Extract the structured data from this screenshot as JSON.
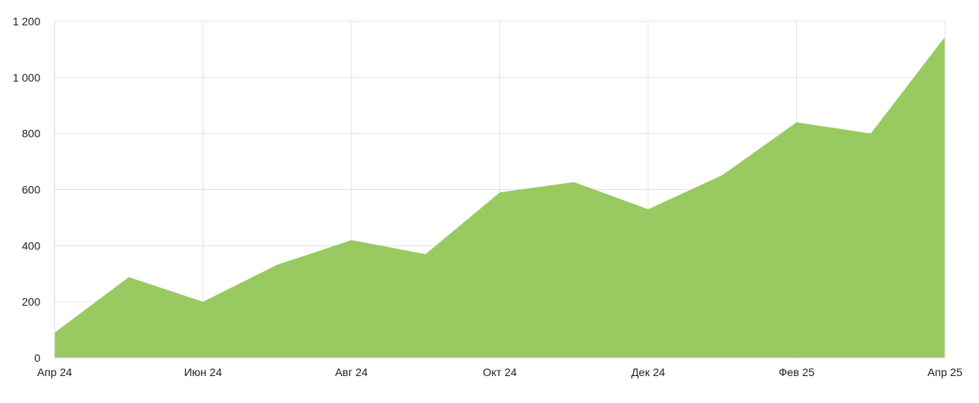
{
  "chart_data": {
    "type": "area",
    "title": "",
    "xlabel": "",
    "ylabel": "",
    "grid": true,
    "legend": "none",
    "x_tick_labels": [
      "Апр 24",
      "Июн 24",
      "Авг 24",
      "Окт 24",
      "Дек 24",
      "Фев 25",
      "Апр 25"
    ],
    "y_ticks": [
      0,
      200,
      400,
      600,
      800,
      1000,
      1200
    ],
    "y_tick_labels": [
      "0",
      "200",
      "400",
      "600",
      "800",
      "1 000",
      "1 200"
    ],
    "ylim": [
      0,
      1200
    ],
    "x": [
      "2024-04",
      "2024-05",
      "2024-06",
      "2024-07",
      "2024-08",
      "2024-09",
      "2024-10",
      "2024-11",
      "2024-12",
      "2025-01",
      "2025-02",
      "2025-03",
      "2025-04"
    ],
    "series": [
      {
        "values": [
          90,
          288,
          200,
          332,
          420,
          370,
          590,
          627,
          530,
          652,
          840,
          800,
          1145
        ],
        "color": "#8dc450"
      }
    ]
  }
}
